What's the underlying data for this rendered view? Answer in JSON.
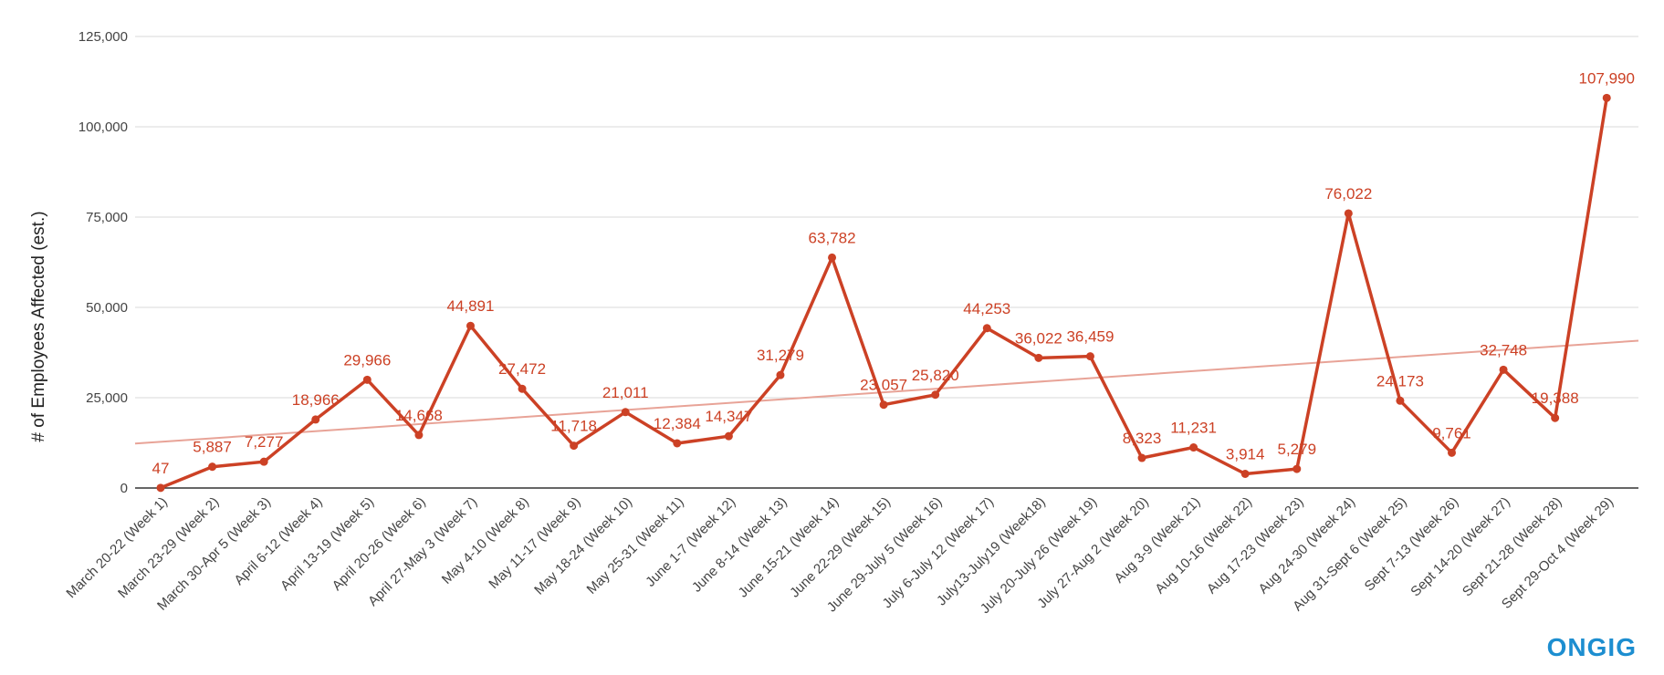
{
  "chart_data": {
    "type": "line",
    "ylabel": "# of Employees Affected (est.)",
    "ylim": [
      0,
      125000
    ],
    "yticks": [
      0,
      25000,
      50000,
      75000,
      100000,
      125000
    ],
    "ytick_labels": [
      "0",
      "25,000",
      "50,000",
      "75,000",
      "100,000",
      "125,000"
    ],
    "grid": true,
    "categories": [
      "March 20-22 (Week 1)",
      "March 23-29 (Week 2)",
      "March 30-Apr 5 (Week 3)",
      "April 6-12 (Week 4)",
      "April 13-19 (Week 5)",
      "April 20-26 (Week 6)",
      "April 27-May 3 (Week 7)",
      "May 4-10 (Week 8)",
      "May 11-17 (Week 9)",
      "May 18-24 (Week 10)",
      "May 25-31 (Week 11)",
      "June 1-7 (Week 12)",
      "June 8-14 (Week 13)",
      "June 15-21 (Week 14)",
      "June 22-29 (Week 15)",
      "June 29-July 5 (Week 16)",
      "July 6-July 12 (Week 17)",
      "July13-July19 (Week18)",
      "July 20-July 26 (Week 19)",
      "July 27-Aug 2 (Week 20)",
      "Aug 3-9 (Week 21)",
      "Aug 10-16 (Week 22)",
      "Aug 17-23 (Week 23)",
      "Aug 24-30 (Week 24)",
      "Aug 31-Sept 6 (Week 25)",
      "Sept 7-13 (Week 26)",
      "Sept 14-20 (Week 27)",
      "Sept 21-28 (Week 28)",
      "Sept 29-Oct 4 (Week 29)"
    ],
    "series": [
      {
        "values": [
          47,
          5887,
          7277,
          18966,
          29966,
          14668,
          44891,
          27472,
          11718,
          21011,
          12384,
          14347,
          31279,
          63782,
          23057,
          25820,
          44253,
          36022,
          36459,
          8323,
          11231,
          3914,
          5279,
          76022,
          24173,
          9761,
          32748,
          19388,
          107990
        ],
        "labels": [
          "47",
          "5,887",
          "7,277",
          "18,966",
          "29,966",
          "14,668",
          "44,891",
          "27,472",
          "11,718",
          "21,011",
          "12,384",
          "14,347",
          "31,279",
          "63,782",
          "23,057",
          "25,820",
          "44,253",
          "36,022",
          "36,459",
          "8,323",
          "11,231",
          "3,914",
          "5,279",
          "76,022",
          "24,173",
          "9,761",
          "32,748",
          "19,388",
          "107,990"
        ],
        "color": "#cc4125"
      }
    ],
    "trendline": {
      "type": "linear",
      "color": "#e8a397"
    }
  },
  "logo": {
    "text": "ONGIG",
    "color": "#1d8ed0"
  }
}
